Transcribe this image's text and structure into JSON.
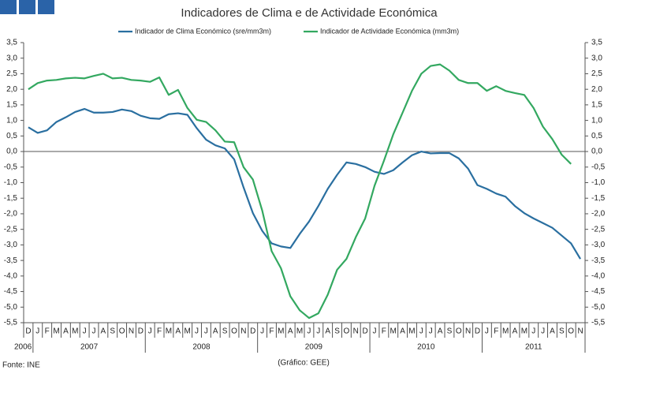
{
  "chart_data": {
    "type": "line",
    "title": "Indicadores de Clima e de Actividade Económica",
    "source": "Fonte: INE",
    "credit": "(Gráfico: GEE)",
    "categories": [
      "D",
      "J",
      "F",
      "M",
      "A",
      "M",
      "J",
      "J",
      "A",
      "S",
      "O",
      "N",
      "D",
      "J",
      "F",
      "M",
      "A",
      "M",
      "J",
      "J",
      "A",
      "S",
      "O",
      "N",
      "D",
      "J",
      "F",
      "M",
      "A",
      "M",
      "J",
      "J",
      "A",
      "S",
      "O",
      "N",
      "D",
      "J",
      "F",
      "M",
      "A",
      "M",
      "J",
      "J",
      "A",
      "S",
      "O",
      "N",
      "D",
      "J",
      "F",
      "M",
      "A",
      "M",
      "J",
      "J",
      "A",
      "S",
      "O",
      "N"
    ],
    "years": [
      "2006",
      "2007",
      "2008",
      "2009",
      "2010",
      "2011"
    ],
    "series": [
      {
        "name": "Indicador de Clima Económico (sre/mm3m)",
        "color": "#2a6fa0",
        "values": [
          0.78,
          0.6,
          0.68,
          0.95,
          1.1,
          1.27,
          1.37,
          1.25,
          1.25,
          1.27,
          1.35,
          1.3,
          1.15,
          1.07,
          1.05,
          1.2,
          1.23,
          1.18,
          0.75,
          0.38,
          0.2,
          0.1,
          -0.25,
          -1.15,
          -1.98,
          -2.55,
          -2.95,
          -3.05,
          -3.1,
          -2.65,
          -2.25,
          -1.75,
          -1.2,
          -0.75,
          -0.35,
          -0.4,
          -0.5,
          -0.65,
          -0.72,
          -0.6,
          -0.35,
          -0.12,
          0.0,
          -0.06,
          -0.05,
          -0.05,
          -0.22,
          -0.55,
          -1.08,
          -1.2,
          -1.35,
          -1.45,
          -1.75,
          -1.98,
          -2.15,
          -2.3,
          -2.45,
          -2.7,
          -2.95,
          -3.45
        ]
      },
      {
        "name": "Indicador de Actividade Económica (mm3m)",
        "color": "#33a860",
        "values": [
          2.0,
          2.2,
          2.28,
          2.3,
          2.35,
          2.37,
          2.35,
          2.43,
          2.5,
          2.35,
          2.37,
          2.3,
          2.28,
          2.24,
          2.38,
          1.82,
          1.98,
          1.4,
          1.02,
          0.95,
          0.68,
          0.32,
          0.3,
          -0.5,
          -0.9,
          -1.9,
          -3.2,
          -3.75,
          -4.65,
          -5.1,
          -5.35,
          -5.2,
          -4.6,
          -3.8,
          -3.45,
          -2.75,
          -2.15,
          -1.1,
          -0.3,
          0.55,
          1.25,
          1.95,
          2.5,
          2.75,
          2.8,
          2.6,
          2.3,
          2.2,
          2.2,
          1.95,
          2.1,
          1.95,
          1.88,
          1.82,
          1.4,
          0.8,
          0.4,
          -0.1,
          -0.4,
          null
        ]
      }
    ],
    "ylim": [
      -5.5,
      3.5
    ],
    "yticks": [
      {
        "value": 3.5,
        "label": "3,5"
      },
      {
        "value": 3.0,
        "label": "3,0"
      },
      {
        "value": 2.5,
        "label": "2,5"
      },
      {
        "value": 2.0,
        "label": "2,0"
      },
      {
        "value": 1.5,
        "label": "1,5"
      },
      {
        "value": 1.0,
        "label": "1,0"
      },
      {
        "value": 0.5,
        "label": "0,5"
      },
      {
        "value": 0,
        "label": "0,0"
      },
      {
        "value": -0.5,
        "label": "-0,5"
      },
      {
        "value": -1.0,
        "label": "-1,0"
      },
      {
        "value": -1.5,
        "label": "-1,5"
      },
      {
        "value": -2.0,
        "label": "-2,0"
      },
      {
        "value": -2.5,
        "label": "-2,5"
      },
      {
        "value": -3.0,
        "label": "-3,0"
      },
      {
        "value": -3.5,
        "label": "-3,5"
      },
      {
        "value": -4.0,
        "label": "-4,0"
      },
      {
        "value": -4.5,
        "label": "-4,5"
      },
      {
        "value": -5.0,
        "label": "-5,0"
      },
      {
        "value": -5.5,
        "label": "-5,5"
      }
    ]
  }
}
